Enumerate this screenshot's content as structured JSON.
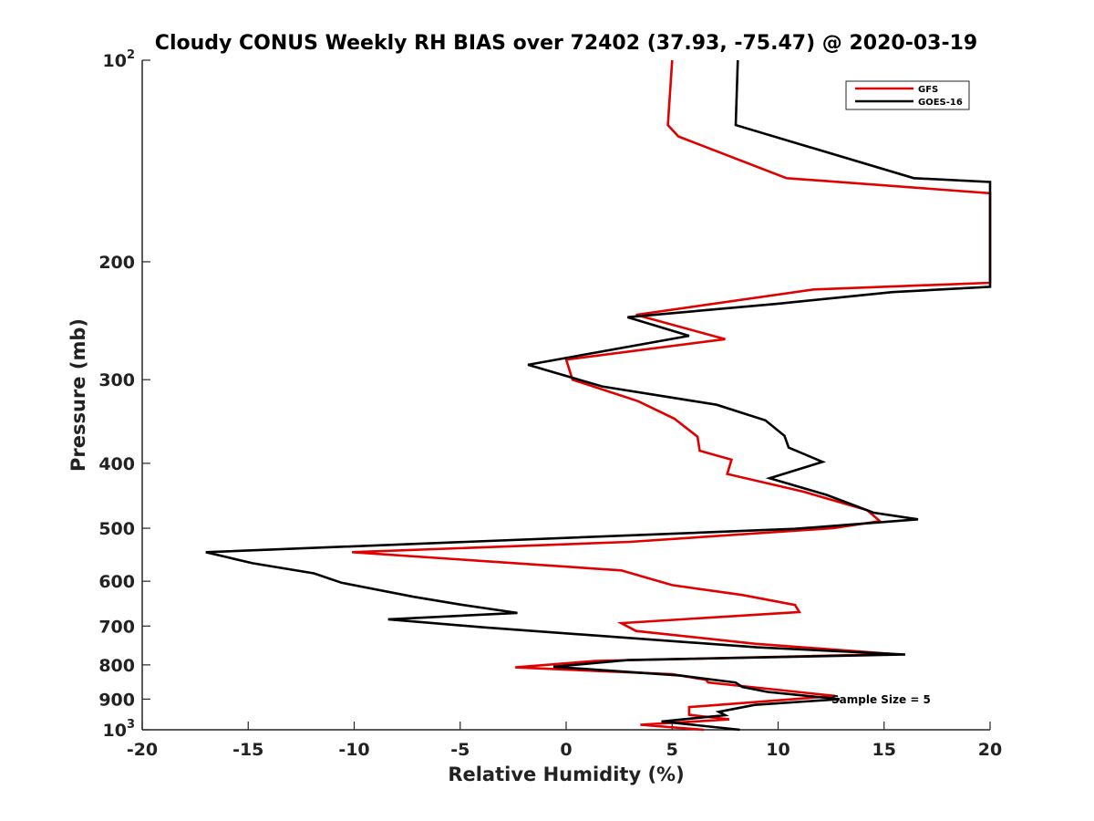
{
  "chart_data": {
    "type": "line",
    "title": "Cloudy CONUS Weekly RH BIAS over 72402 (37.93, -75.47) @ 2020-03-19",
    "xlabel": "Relative Humidity (%)",
    "ylabel": "Pressure (mb)",
    "xlim": [
      -20,
      20
    ],
    "ylim": [
      100,
      1000
    ],
    "y_scale": "log",
    "y_reversed": true,
    "x_ticks": [
      "-20",
      "-15",
      "-10",
      "-5",
      "0",
      "5",
      "10",
      "15",
      "20"
    ],
    "y_ticks": [
      {
        "value": 100,
        "base": "10",
        "exp": "2"
      },
      {
        "value": 200,
        "label": "200"
      },
      {
        "value": 300,
        "label": "300"
      },
      {
        "value": 400,
        "label": "400"
      },
      {
        "value": 500,
        "label": "500"
      },
      {
        "value": 600,
        "label": "600"
      },
      {
        "value": 700,
        "label": "700"
      },
      {
        "value": 800,
        "label": "800"
      },
      {
        "value": 900,
        "label": "900"
      },
      {
        "value": 1000,
        "base": "10",
        "exp": "3"
      }
    ],
    "grid": false,
    "legend_position": "top-right",
    "annotation": "Sample Size = 5",
    "series": [
      {
        "name": "GFS",
        "color": "#e00000",
        "points": [
          [
            5.0,
            100
          ],
          [
            4.8,
            125
          ],
          [
            5.3,
            130
          ],
          [
            10.4,
            150
          ],
          [
            20.0,
            158
          ],
          [
            20.0,
            215
          ],
          [
            11.7,
            220
          ],
          [
            3.3,
            240
          ],
          [
            7.5,
            261
          ],
          [
            0.0,
            280
          ],
          [
            0.3,
            300
          ],
          [
            3.4,
            323
          ],
          [
            5.1,
            343
          ],
          [
            6.2,
            365
          ],
          [
            6.3,
            383
          ],
          [
            7.8,
            395
          ],
          [
            7.6,
            415
          ],
          [
            11.2,
            441
          ],
          [
            14.2,
            470
          ],
          [
            14.8,
            488
          ],
          [
            12.6,
            500
          ],
          [
            3.0,
            524
          ],
          [
            -10.1,
            543
          ],
          [
            2.6,
            578
          ],
          [
            5.0,
            608
          ],
          [
            8.3,
            629
          ],
          [
            10.8,
            651
          ],
          [
            11.0,
            667
          ],
          [
            2.6,
            693
          ],
          [
            3.3,
            712
          ],
          [
            8.9,
            744
          ],
          [
            15.5,
            771
          ],
          [
            1.4,
            789
          ],
          [
            -2.4,
            807
          ],
          [
            5.0,
            826
          ],
          [
            6.6,
            842
          ],
          [
            6.7,
            850
          ],
          [
            12.7,
            890
          ],
          [
            5.8,
            925
          ],
          [
            5.8,
            950
          ],
          [
            7.7,
            965
          ],
          [
            3.5,
            983
          ],
          [
            6.5,
            1000
          ]
        ]
      },
      {
        "name": "GOES-16",
        "color": "#000000",
        "points": [
          [
            8.1,
            100
          ],
          [
            8.0,
            125
          ],
          [
            16.4,
            150
          ],
          [
            20.0,
            152
          ],
          [
            20.0,
            218
          ],
          [
            15.4,
            222
          ],
          [
            10.0,
            231
          ],
          [
            2.9,
            242
          ],
          [
            5.8,
            258
          ],
          [
            -1.8,
            285
          ],
          [
            1.7,
            307
          ],
          [
            7.1,
            327
          ],
          [
            9.4,
            345
          ],
          [
            10.3,
            364
          ],
          [
            10.5,
            379
          ],
          [
            12.1,
            398
          ],
          [
            9.6,
            421
          ],
          [
            12.3,
            446
          ],
          [
            14.5,
            474
          ],
          [
            16.6,
            485
          ],
          [
            10.8,
            501
          ],
          [
            -17.0,
            543
          ],
          [
            -14.8,
            564
          ],
          [
            -11.9,
            584
          ],
          [
            -10.6,
            603
          ],
          [
            -7.2,
            633
          ],
          [
            -5.0,
            650
          ],
          [
            -2.3,
            669
          ],
          [
            -8.4,
            684
          ],
          [
            -3.9,
            703
          ],
          [
            9.0,
            753
          ],
          [
            16.0,
            772
          ],
          [
            2.9,
            787
          ],
          [
            -0.6,
            805
          ],
          [
            5.4,
            830
          ],
          [
            8.0,
            850
          ],
          [
            8.3,
            863
          ],
          [
            9.5,
            878
          ],
          [
            12.9,
            900
          ],
          [
            8.9,
            918
          ],
          [
            7.2,
            940
          ],
          [
            7.5,
            951
          ],
          [
            4.5,
            972
          ],
          [
            8.2,
            1000
          ]
        ]
      }
    ]
  }
}
